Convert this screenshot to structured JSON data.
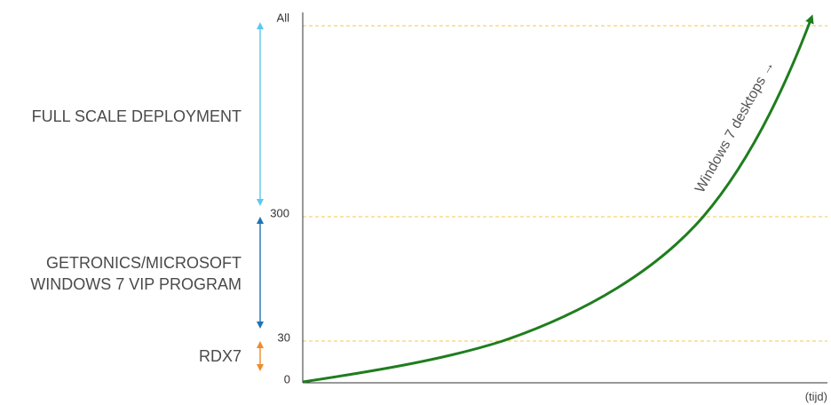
{
  "chart_data": {
    "type": "line",
    "xlabel": "(tijd)",
    "y_levels": [
      {
        "label": "0",
        "value": 0
      },
      {
        "label": "30",
        "value": 30
      },
      {
        "label": "300",
        "value": 300
      },
      {
        "label": "All",
        "value": "All"
      }
    ],
    "guide_lines": [
      "30",
      "300",
      "All"
    ],
    "phases": [
      {
        "lines": [
          "FULL SCALE DEPLOYMENT"
        ],
        "from": "300",
        "to": "All",
        "color": "#5bc8f0"
      },
      {
        "lines": [
          "GETRONICS/MICROSOFT",
          "WINDOWS 7 VIP PROGRAM"
        ],
        "from": "30",
        "to": "300",
        "color": "#1e73b4"
      },
      {
        "lines": [
          "RDX7"
        ],
        "from": "0",
        "to": "30",
        "color": "#f08a2a"
      }
    ],
    "series": [
      {
        "name": "Windows 7 desktops",
        "arrow_glyph": "→",
        "color": "#1f7d1f",
        "shape": "exponential growth from 0 to All over time"
      }
    ],
    "colors": {
      "guide": "#f2c94c",
      "axis": "#333333"
    }
  }
}
